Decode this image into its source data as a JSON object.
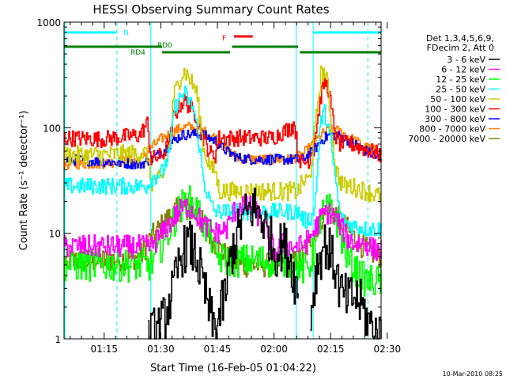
{
  "chart_data": {
    "type": "line",
    "title": "HESSI Observing Summary Count Rates",
    "xlabel": "Start Time (16-Feb-05 01:04:22)",
    "ylabel": "Count Rate (s⁻¹ detector⁻¹)",
    "xunit": "minutes after 01:04:22",
    "xlim": [
      0,
      84
    ],
    "ylim": [
      1,
      1000
    ],
    "yscale": "log",
    "x_ticks": [
      "01:15",
      "01:30",
      "01:45",
      "02:00",
      "02:15",
      "02:30"
    ],
    "y_ticks": [
      "1",
      "10",
      "100",
      "1000"
    ],
    "legend_header": [
      "Det 1,3,4,5,6,9,",
      "FDecim 2, Att 0"
    ],
    "series": [
      {
        "name": "3 - 6 keV",
        "color": "#000000",
        "band": 0.12,
        "noise": 0.12,
        "x": [
          0,
          20,
          22,
          26,
          29,
          31,
          33,
          35,
          37,
          39,
          40,
          43,
          44,
          47,
          50,
          52,
          54,
          56,
          58,
          60,
          62,
          63,
          65,
          66,
          67,
          69,
          70,
          72,
          73,
          75,
          77,
          79,
          80,
          82,
          84
        ],
        "y": [
          null,
          null,
          1,
          1.4,
          3,
          6.5,
          8,
          6,
          3,
          1.5,
          1.2,
          3,
          6,
          13,
          18,
          15,
          10,
          6.5,
          8,
          5.5,
          2.5,
          null,
          1.5,
          2.8,
          5,
          8,
          7,
          4.5,
          2.8,
          2.3,
          2.5,
          2,
          1.6,
          1.2,
          1
        ]
      },
      {
        "name": "6 - 12 keV",
        "color": "#ff00ff",
        "band": 0.06,
        "noise": 0.05,
        "x": [
          0,
          10,
          20,
          23,
          26,
          29,
          31,
          33,
          35,
          37,
          40,
          43,
          45,
          47,
          49,
          52,
          54,
          56,
          58,
          60,
          62,
          63,
          65,
          67,
          69,
          71,
          73,
          75,
          77,
          80,
          82,
          84
        ],
        "y": [
          7.5,
          7.5,
          7.5,
          7.5,
          10,
          14,
          17,
          18,
          15,
          12,
          10,
          11,
          16,
          19,
          18,
          14,
          9,
          6.5,
          8,
          7.5,
          7.5,
          7.5,
          9,
          12,
          16,
          15,
          12,
          9,
          8,
          8,
          7,
          7
        ]
      },
      {
        "name": "12 - 25 keV",
        "color": "#00ff00",
        "band": 0.1,
        "noise": 0.06,
        "x": [
          0,
          20,
          23,
          26,
          29,
          31,
          33,
          35,
          37,
          39,
          40,
          43,
          45,
          47,
          50,
          52,
          54,
          56,
          58,
          60,
          62,
          63,
          65,
          67,
          68,
          70,
          72,
          73,
          75,
          77,
          80,
          84
        ],
        "y": [
          5,
          5,
          5,
          8,
          13,
          18,
          20,
          17,
          12,
          9,
          6,
          5.5,
          5.5,
          5.5,
          5.5,
          5.5,
          5.5,
          5.5,
          5.5,
          5.5,
          5,
          4.5,
          5,
          9,
          15,
          17,
          14,
          10,
          6,
          4.5,
          3.5,
          3.5
        ]
      },
      {
        "name": "25 - 50 keV",
        "color": "#00ffff",
        "band": 0.05,
        "noise": 0.03,
        "x": [
          0,
          10,
          20,
          22,
          23,
          26,
          28,
          29,
          31,
          32,
          33,
          34,
          35,
          37,
          39,
          40,
          41,
          43,
          45,
          50,
          55,
          60,
          61,
          62,
          63,
          64,
          66,
          67,
          68,
          69,
          70,
          72,
          73,
          74,
          76,
          80,
          84
        ],
        "y": [
          28,
          28,
          28,
          28,
          33,
          38,
          60,
          150,
          200,
          210,
          180,
          160,
          110,
          30,
          18,
          16,
          16,
          16,
          16,
          16,
          16,
          16,
          16,
          16,
          14,
          13,
          15,
          35,
          120,
          140,
          100,
          30,
          15,
          13,
          12,
          11,
          11
        ]
      },
      {
        "name": "50 - 100 keV",
        "color": "#cccc00",
        "band": 0.05,
        "noise": 0.04,
        "x": [
          0,
          10,
          20,
          22,
          23,
          26,
          28,
          29,
          31,
          32,
          33,
          35,
          37,
          39,
          40,
          41,
          45,
          50,
          55,
          60,
          61,
          62,
          63,
          65,
          67,
          68,
          69,
          70,
          71,
          72,
          73,
          74,
          76,
          80,
          84
        ],
        "y": [
          55,
          55,
          57,
          57,
          30,
          33,
          70,
          200,
          320,
          340,
          300,
          220,
          60,
          40,
          40,
          25,
          25,
          25,
          25,
          25,
          25,
          25,
          30,
          33,
          150,
          320,
          340,
          220,
          80,
          40,
          32,
          28,
          28,
          25,
          22
        ]
      },
      {
        "name": "100 - 300 keV",
        "color": "#ff0000",
        "band": 0.05,
        "noise": 0.03,
        "x": [
          0,
          10,
          20,
          22,
          23,
          26,
          28,
          29,
          31,
          32,
          33,
          35,
          37,
          39,
          40,
          41,
          45,
          50,
          55,
          60,
          61,
          62,
          63,
          65,
          67,
          68,
          69,
          70,
          71,
          72,
          73,
          74,
          76,
          80,
          84
        ],
        "y": [
          80,
          78,
          85,
          110,
          50,
          55,
          75,
          130,
          170,
          180,
          160,
          130,
          75,
          55,
          55,
          80,
          80,
          80,
          80,
          100,
          110,
          55,
          45,
          50,
          110,
          200,
          280,
          230,
          130,
          80,
          70,
          70,
          70,
          62,
          55
        ]
      },
      {
        "name": "300 - 800 keV",
        "color": "#0000ff",
        "band": 0.03,
        "noise": 0.02,
        "x": [
          0,
          10,
          20,
          23,
          26,
          29,
          31,
          34,
          37,
          40,
          43,
          46,
          50,
          55,
          60,
          63,
          66,
          68,
          70,
          72,
          74,
          77,
          80,
          84
        ],
        "y": [
          50,
          48,
          45,
          50,
          60,
          75,
          85,
          87,
          85,
          75,
          60,
          52,
          50,
          50,
          50,
          50,
          60,
          75,
          85,
          85,
          80,
          70,
          60,
          50
        ]
      },
      {
        "name": "800 - 7000 keV",
        "color": "#ff8000",
        "band": 0.03,
        "noise": 0.02,
        "x": [
          0,
          10,
          20,
          23,
          26,
          29,
          31,
          33,
          35,
          37,
          40,
          43,
          46,
          50,
          55,
          60,
          63,
          66,
          68,
          70,
          72,
          74,
          77,
          80,
          84
        ],
        "y": [
          45,
          46,
          50,
          65,
          80,
          92,
          100,
          102,
          98,
          92,
          80,
          62,
          52,
          50,
          50,
          50,
          55,
          70,
          85,
          95,
          95,
          88,
          75,
          65,
          58
        ]
      },
      {
        "name": "7000 - 20000 keV",
        "color": "#808000",
        "band": 0.07,
        "noise": 0.05,
        "x": [
          0,
          10,
          20,
          23,
          26,
          29,
          31,
          33,
          35,
          37,
          40,
          43,
          46,
          50,
          55,
          60,
          63,
          66,
          68,
          70,
          72,
          74,
          77,
          80,
          84
        ],
        "y": [
          5.5,
          5.5,
          6,
          9,
          12,
          16,
          17,
          17,
          15,
          12,
          8,
          6,
          5,
          5,
          5,
          5,
          6,
          10,
          14,
          16,
          15,
          12,
          9,
          7,
          6
        ]
      }
    ],
    "state_bars": [
      {
        "label": "N",
        "color": "#00ffff",
        "segments": [
          [
            0,
            14
          ],
          [
            66,
            84
          ]
        ]
      },
      {
        "label": "RD4",
        "color": "#008000",
        "segments": [
          [
            0,
            26
          ]
        ]
      },
      {
        "label": "RD0",
        "color": "#008000",
        "segments": [
          [
            26,
            44
          ],
          [
            44.5,
            62
          ],
          [
            62.5,
            84
          ]
        ]
      },
      {
        "label": "F",
        "color": "#ff0000",
        "segments": [
          [
            45,
            50
          ]
        ]
      }
    ],
    "dashed_markers": [
      14,
      80.5
    ],
    "solid_markers": [
      23,
      61.5,
      66
    ]
  },
  "footer": {
    "timestamp": "10-Mar-2010 08:25"
  }
}
